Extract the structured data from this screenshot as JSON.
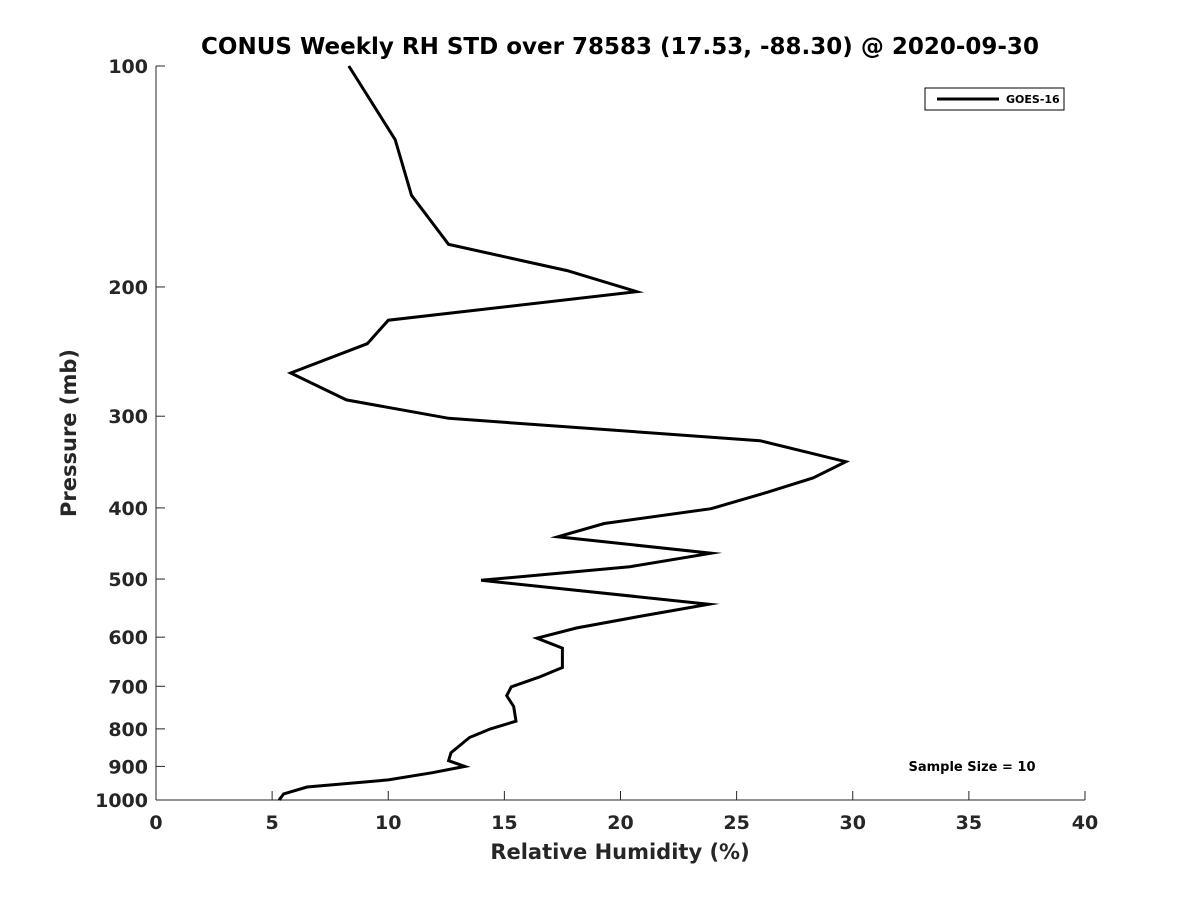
{
  "chart_data": {
    "type": "line",
    "title": "CONUS Weekly RH STD over 78583 (17.53, -88.30) @ 2020-09-30",
    "xlabel": "Relative Humidity (%)",
    "ylabel": "Pressure (mb)",
    "xlim": [
      0,
      40
    ],
    "ylim": [
      100,
      1000
    ],
    "y_scale": "log",
    "y_reversed": true,
    "x_ticks": [
      0,
      5,
      10,
      15,
      20,
      25,
      30,
      35,
      40
    ],
    "y_ticks": [
      100,
      200,
      300,
      400,
      500,
      600,
      700,
      800,
      900,
      1000
    ],
    "grid": false,
    "legend_position": "top-right",
    "series": [
      {
        "name": "GOES-16",
        "color": "#000000",
        "points": [
          [
            8.3,
            100
          ],
          [
            10.3,
            126
          ],
          [
            11.0,
            150
          ],
          [
            12.6,
            175
          ],
          [
            17.7,
            190
          ],
          [
            20.7,
            203
          ],
          [
            10.0,
            222
          ],
          [
            9.1,
            239
          ],
          [
            5.8,
            262
          ],
          [
            8.2,
            285
          ],
          [
            12.6,
            302
          ],
          [
            26.0,
            324
          ],
          [
            29.7,
            346
          ],
          [
            28.3,
            364
          ],
          [
            26.3,
            381
          ],
          [
            23.9,
            401
          ],
          [
            19.3,
            420
          ],
          [
            17.3,
            438
          ],
          [
            23.9,
            461
          ],
          [
            20.4,
            481
          ],
          [
            14.0,
            502
          ],
          [
            23.8,
            541
          ],
          [
            20.7,
            563
          ],
          [
            18.1,
            583
          ],
          [
            16.4,
            602
          ],
          [
            17.5,
            621
          ],
          [
            17.5,
            660
          ],
          [
            16.5,
            680
          ],
          [
            15.3,
            701
          ],
          [
            15.1,
            721
          ],
          [
            15.4,
            746
          ],
          [
            15.5,
            781
          ],
          [
            14.4,
            800
          ],
          [
            13.5,
            822
          ],
          [
            12.7,
            862
          ],
          [
            12.6,
            884
          ],
          [
            13.3,
            900
          ],
          [
            11.9,
            918
          ],
          [
            10.0,
            939
          ],
          [
            6.5,
            960
          ],
          [
            5.5,
            981
          ],
          [
            5.3,
            1000
          ]
        ]
      }
    ],
    "annotations": [
      "Sample Size = 10"
    ]
  }
}
